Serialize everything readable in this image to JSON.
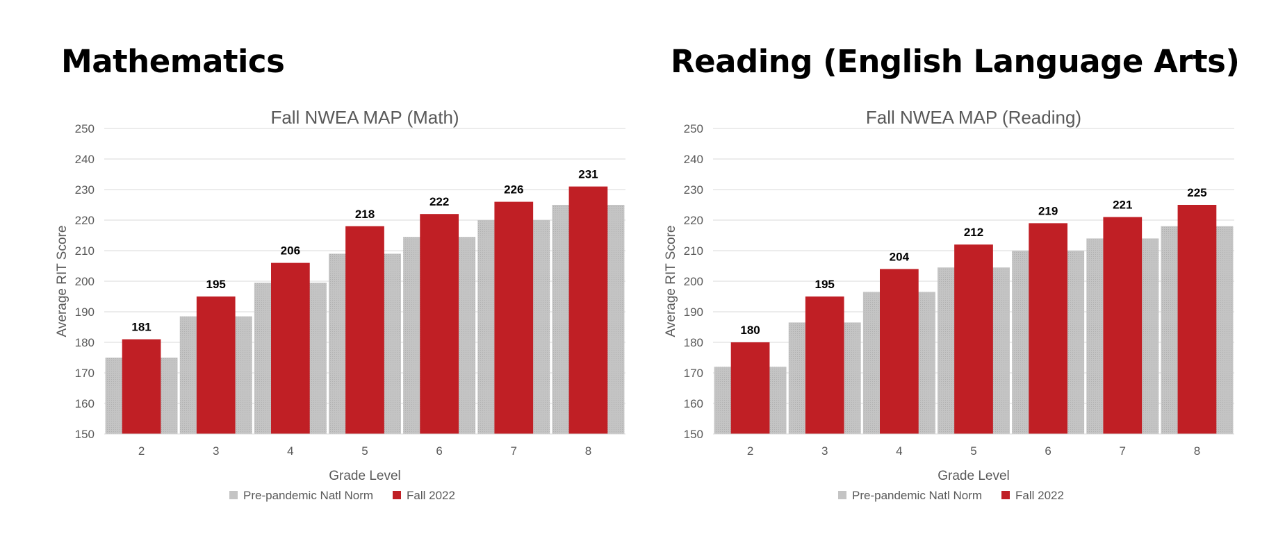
{
  "headings": {
    "left": "Mathematics",
    "right": "Reading (English Language Arts)"
  },
  "colors": {
    "norm": "#c4c4c4",
    "fall": "#c01f25",
    "grid": "#d9d9d9",
    "axis_text": "#595959"
  },
  "chart_data": [
    {
      "type": "bar",
      "title": "Fall NWEA MAP (Math)",
      "xlabel": "Grade Level",
      "ylabel": "Average RIT Score",
      "ylim": [
        150,
        250
      ],
      "yticks": [
        150,
        160,
        170,
        180,
        190,
        200,
        210,
        220,
        230,
        240,
        250
      ],
      "categories": [
        "2",
        "3",
        "4",
        "5",
        "6",
        "7",
        "8"
      ],
      "grid": true,
      "legend": "bottom",
      "series": [
        {
          "name": "Pre-pandemic Natl Norm",
          "values": [
            175,
            188.5,
            199.5,
            209,
            214.5,
            220,
            225
          ],
          "color": "#c4c4c4"
        },
        {
          "name": "Fall 2022",
          "values": [
            181,
            195,
            206,
            218,
            222,
            226,
            231
          ],
          "color": "#c01f25"
        }
      ],
      "data_labels": [
        "181",
        "195",
        "206",
        "218",
        "222",
        "226",
        "231"
      ]
    },
    {
      "type": "bar",
      "title": "Fall NWEA MAP (Reading)",
      "xlabel": "Grade Level",
      "ylabel": "Average RIT Score",
      "ylim": [
        150,
        250
      ],
      "yticks": [
        150,
        160,
        170,
        180,
        190,
        200,
        210,
        220,
        230,
        240,
        250
      ],
      "categories": [
        "2",
        "3",
        "4",
        "5",
        "6",
        "7",
        "8"
      ],
      "grid": true,
      "legend": "bottom",
      "series": [
        {
          "name": "Pre-pandemic Natl Norm",
          "values": [
            172,
            186.5,
            196.5,
            204.5,
            210,
            214,
            218
          ],
          "color": "#c4c4c4"
        },
        {
          "name": "Fall 2022",
          "values": [
            180,
            195,
            204,
            212,
            219,
            221,
            225
          ],
          "color": "#c01f25"
        }
      ],
      "data_labels": [
        "180",
        "195",
        "204",
        "212",
        "219",
        "221",
        "225"
      ]
    }
  ]
}
